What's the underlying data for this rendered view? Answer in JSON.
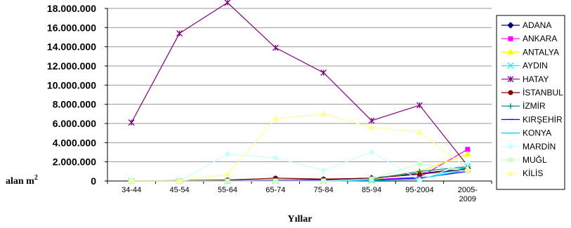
{
  "chart_data": {
    "type": "line",
    "title": "",
    "xlabel": "Yıllar",
    "ylabel": "alan m",
    "ylabel_superscript": "2",
    "ylim": [
      0,
      18000000
    ],
    "yticks": [
      0,
      2000000,
      4000000,
      6000000,
      8000000,
      10000000,
      12000000,
      14000000,
      16000000,
      18000000
    ],
    "ytick_labels": [
      "0",
      "2.000.000",
      "4.000.000",
      "6.000.000",
      "8.000.000",
      "10.000.000",
      "12.000.000",
      "14.000.000",
      "16.000.000",
      "18.000.000"
    ],
    "categories": [
      "34-44",
      "45-54",
      "55-64",
      "65-74",
      "75-84",
      "85-94",
      "95-2004",
      "2005-2009"
    ],
    "grid": true,
    "legend_position": "right",
    "series": [
      {
        "name": "ADANA",
        "color": "#000080",
        "marker": "diamond",
        "values": [
          0,
          0,
          50000,
          100000,
          150000,
          300000,
          800000,
          1300000
        ]
      },
      {
        "name": "ANKARA",
        "color": "#ff00ff",
        "marker": "square",
        "values": [
          0,
          0,
          50000,
          100000,
          100000,
          150000,
          400000,
          3300000
        ]
      },
      {
        "name": "ANTALYA",
        "color": "#ffff00",
        "marker": "triangle",
        "values": [
          0,
          0,
          0,
          0,
          0,
          100000,
          1000000,
          2800000
        ]
      },
      {
        "name": "AYDIN",
        "color": "#00ffff",
        "marker": "x",
        "values": [
          0,
          0,
          0,
          0,
          0,
          50000,
          200000,
          1500000
        ]
      },
      {
        "name": "HATAY",
        "color": "#800080",
        "marker": "star",
        "values": [
          6100000,
          15400000,
          18600000,
          13900000,
          11300000,
          6300000,
          7900000,
          1600000
        ]
      },
      {
        "name": "İSTANBUL",
        "color": "#800000",
        "marker": "circle",
        "values": [
          0,
          50000,
          100000,
          300000,
          200000,
          300000,
          700000,
          1200000
        ]
      },
      {
        "name": "İZMİR",
        "color": "#008080",
        "marker": "plus",
        "values": [
          0,
          0,
          0,
          50000,
          50000,
          200000,
          1000000,
          1500000
        ]
      },
      {
        "name": "KIRŞEHİR",
        "color": "#0000ff",
        "marker": "dash",
        "values": [
          0,
          0,
          0,
          0,
          50000,
          100000,
          300000,
          1000000
        ]
      },
      {
        "name": "KONYA",
        "color": "#00ccff",
        "marker": "dash",
        "values": [
          0,
          0,
          0,
          0,
          0,
          50000,
          200000,
          1200000
        ]
      },
      {
        "name": "MARDİN",
        "color": "#ccffff",
        "marker": "diamond",
        "values": [
          0,
          0,
          2800000,
          2400000,
          1100000,
          3000000,
          100000,
          1900000
        ]
      },
      {
        "name": "MUĞL",
        "color": "#ccffcc",
        "marker": "square",
        "values": [
          0,
          0,
          0,
          0,
          0,
          200000,
          1800000,
          1000000
        ]
      },
      {
        "name": "KİLİS",
        "color": "#ffff99",
        "marker": "triangle",
        "values": [
          0,
          0,
          700000,
          6500000,
          7000000,
          5600000,
          5100000,
          1300000
        ]
      }
    ]
  }
}
